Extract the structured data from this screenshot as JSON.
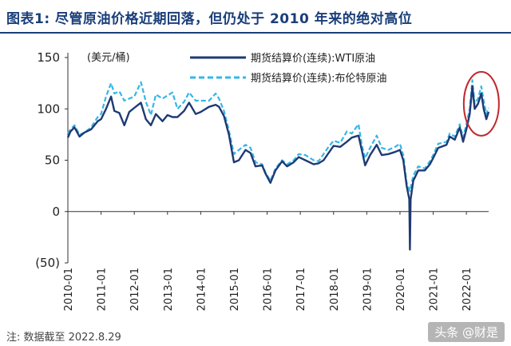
{
  "header": {
    "title": "图表1:   尽管原油价格近期回落，但仍处于 2010 年来的绝对高位"
  },
  "footer": {
    "note": "注:  数据截至 2022.8.29",
    "watermark": "头条 @财是"
  },
  "chart_data": {
    "type": "line",
    "unit_label": "(美元/桶)",
    "ylim": [
      -50,
      150
    ],
    "yticks": [
      150,
      100,
      50,
      0,
      -50
    ],
    "ytick_labels": [
      "150",
      "100",
      "50",
      "0",
      "(50)"
    ],
    "x_categories": [
      "2010-01",
      "2011-01",
      "2012-01",
      "2013-01",
      "2014-01",
      "2015-01",
      "2016-01",
      "2017-01",
      "2018-01",
      "2019-01",
      "2020-01",
      "2021-01",
      "2022-01"
    ],
    "xlim": [
      2010.0,
      2022.67
    ],
    "legend_position": "top-center",
    "highlight": {
      "x": 2022.45,
      "y": 105
    },
    "series": [
      {
        "name": "期货结算价(连续):WTI原油",
        "color": "#1f3a73",
        "style": "solid",
        "points": [
          [
            2010.0,
            72
          ],
          [
            2010.08,
            78
          ],
          [
            2010.2,
            82
          ],
          [
            2010.35,
            73
          ],
          [
            2010.5,
            77
          ],
          [
            2010.7,
            80
          ],
          [
            2010.9,
            88
          ],
          [
            2011.0,
            90
          ],
          [
            2011.15,
            100
          ],
          [
            2011.3,
            112
          ],
          [
            2011.4,
            98
          ],
          [
            2011.55,
            96
          ],
          [
            2011.7,
            84
          ],
          [
            2011.85,
            97
          ],
          [
            2012.0,
            101
          ],
          [
            2012.2,
            106
          ],
          [
            2012.35,
            90
          ],
          [
            2012.5,
            84
          ],
          [
            2012.65,
            95
          ],
          [
            2012.85,
            88
          ],
          [
            2013.0,
            94
          ],
          [
            2013.15,
            92
          ],
          [
            2013.3,
            92
          ],
          [
            2013.5,
            98
          ],
          [
            2013.65,
            106
          ],
          [
            2013.85,
            95
          ],
          [
            2014.0,
            97
          ],
          [
            2014.25,
            102
          ],
          [
            2014.45,
            104
          ],
          [
            2014.55,
            102
          ],
          [
            2014.7,
            93
          ],
          [
            2014.85,
            75
          ],
          [
            2015.0,
            48
          ],
          [
            2015.15,
            50
          ],
          [
            2015.35,
            60
          ],
          [
            2015.5,
            57
          ],
          [
            2015.65,
            44
          ],
          [
            2015.85,
            45
          ],
          [
            2015.95,
            37
          ],
          [
            2016.1,
            28
          ],
          [
            2016.25,
            40
          ],
          [
            2016.45,
            49
          ],
          [
            2016.6,
            44
          ],
          [
            2016.8,
            48
          ],
          [
            2016.95,
            53
          ],
          [
            2017.15,
            50
          ],
          [
            2017.4,
            46
          ],
          [
            2017.55,
            47
          ],
          [
            2017.7,
            50
          ],
          [
            2017.85,
            57
          ],
          [
            2018.0,
            64
          ],
          [
            2018.2,
            63
          ],
          [
            2018.4,
            68
          ],
          [
            2018.55,
            72
          ],
          [
            2018.75,
            74
          ],
          [
            2018.85,
            60
          ],
          [
            2018.95,
            45
          ],
          [
            2019.1,
            55
          ],
          [
            2019.3,
            65
          ],
          [
            2019.45,
            55
          ],
          [
            2019.65,
            56
          ],
          [
            2019.85,
            58
          ],
          [
            2020.0,
            60
          ],
          [
            2020.1,
            50
          ],
          [
            2020.2,
            25
          ],
          [
            2020.28,
            12
          ],
          [
            2020.3,
            -37
          ],
          [
            2020.32,
            12
          ],
          [
            2020.4,
            30
          ],
          [
            2020.55,
            40
          ],
          [
            2020.75,
            40
          ],
          [
            2020.9,
            46
          ],
          [
            2021.0,
            52
          ],
          [
            2021.15,
            62
          ],
          [
            2021.4,
            65
          ],
          [
            2021.5,
            73
          ],
          [
            2021.65,
            70
          ],
          [
            2021.8,
            82
          ],
          [
            2021.9,
            68
          ],
          [
            2022.0,
            80
          ],
          [
            2022.1,
            95
          ],
          [
            2022.18,
            122
          ],
          [
            2022.25,
            100
          ],
          [
            2022.35,
            105
          ],
          [
            2022.45,
            115
          ],
          [
            2022.52,
            100
          ],
          [
            2022.6,
            90
          ],
          [
            2022.67,
            97
          ]
        ]
      },
      {
        "name": "期货结算价(连续):布伦特原油",
        "color": "#35b6e8",
        "style": "dashed",
        "points": [
          [
            2010.0,
            76
          ],
          [
            2010.08,
            80
          ],
          [
            2010.2,
            84
          ],
          [
            2010.35,
            75
          ],
          [
            2010.5,
            77
          ],
          [
            2010.7,
            82
          ],
          [
            2010.9,
            92
          ],
          [
            2011.0,
            95
          ],
          [
            2011.15,
            112
          ],
          [
            2011.3,
            125
          ],
          [
            2011.4,
            115
          ],
          [
            2011.55,
            117
          ],
          [
            2011.7,
            108
          ],
          [
            2011.85,
            110
          ],
          [
            2012.0,
            112
          ],
          [
            2012.2,
            126
          ],
          [
            2012.35,
            107
          ],
          [
            2012.5,
            94
          ],
          [
            2012.65,
            114
          ],
          [
            2012.85,
            110
          ],
          [
            2013.0,
            113
          ],
          [
            2013.15,
            116
          ],
          [
            2013.3,
            100
          ],
          [
            2013.5,
            107
          ],
          [
            2013.65,
            116
          ],
          [
            2013.85,
            108
          ],
          [
            2014.0,
            108
          ],
          [
            2014.25,
            108
          ],
          [
            2014.45,
            115
          ],
          [
            2014.55,
            110
          ],
          [
            2014.7,
            98
          ],
          [
            2014.85,
            79
          ],
          [
            2015.0,
            56
          ],
          [
            2015.15,
            60
          ],
          [
            2015.35,
            65
          ],
          [
            2015.5,
            62
          ],
          [
            2015.65,
            48
          ],
          [
            2015.85,
            46
          ],
          [
            2015.95,
            38
          ],
          [
            2016.1,
            30
          ],
          [
            2016.25,
            42
          ],
          [
            2016.45,
            50
          ],
          [
            2016.6,
            46
          ],
          [
            2016.8,
            50
          ],
          [
            2016.95,
            56
          ],
          [
            2017.15,
            55
          ],
          [
            2017.4,
            50
          ],
          [
            2017.55,
            49
          ],
          [
            2017.7,
            56
          ],
          [
            2017.85,
            63
          ],
          [
            2018.0,
            69
          ],
          [
            2018.2,
            67
          ],
          [
            2018.4,
            78
          ],
          [
            2018.55,
            76
          ],
          [
            2018.75,
            85
          ],
          [
            2018.85,
            65
          ],
          [
            2018.95,
            52
          ],
          [
            2019.1,
            62
          ],
          [
            2019.3,
            74
          ],
          [
            2019.45,
            62
          ],
          [
            2019.65,
            60
          ],
          [
            2019.85,
            63
          ],
          [
            2020.0,
            66
          ],
          [
            2020.1,
            55
          ],
          [
            2020.2,
            28
          ],
          [
            2020.3,
            20
          ],
          [
            2020.4,
            35
          ],
          [
            2020.55,
            44
          ],
          [
            2020.75,
            42
          ],
          [
            2020.9,
            49
          ],
          [
            2021.0,
            55
          ],
          [
            2021.15,
            66
          ],
          [
            2021.4,
            68
          ],
          [
            2021.5,
            76
          ],
          [
            2021.65,
            73
          ],
          [
            2021.8,
            85
          ],
          [
            2021.9,
            72
          ],
          [
            2022.0,
            85
          ],
          [
            2022.1,
            100
          ],
          [
            2022.18,
            128
          ],
          [
            2022.25,
            105
          ],
          [
            2022.35,
            110
          ],
          [
            2022.45,
            122
          ],
          [
            2022.52,
            108
          ],
          [
            2022.6,
            95
          ],
          [
            2022.67,
            101
          ]
        ]
      }
    ]
  }
}
